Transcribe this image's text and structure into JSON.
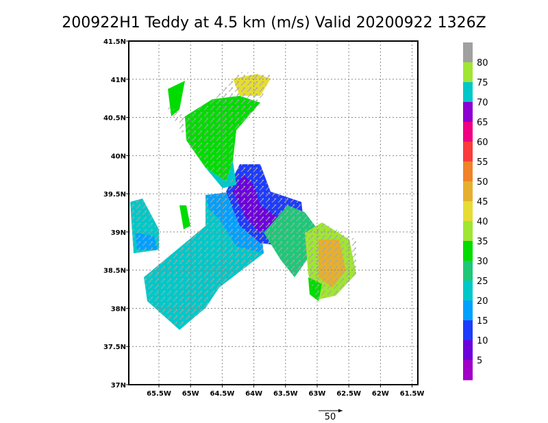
{
  "title": "200922H1 Teddy at 4.5 km (m/s) Valid 20200922 1326Z",
  "latitude_labels": [
    "41.5N",
    "41N",
    "40.5N",
    "40N",
    "39.5N",
    "39N",
    "38.5N",
    "38N",
    "37.5N",
    "37N"
  ],
  "longitude_labels": [
    "65.5W",
    "65W",
    "64.5W",
    "64W",
    "63.5W",
    "63W",
    "62.5W",
    "62W",
    "61.5W"
  ],
  "colorbar": {
    "colors": [
      "#a0a0a0",
      "#a0e632",
      "#00c8c8",
      "#8c00d2",
      "#f00082",
      "#fa3c3c",
      "#f08228",
      "#e6af2d",
      "#e6dc32",
      "#a0e632",
      "#00dc00",
      "#1ec878",
      "#00c8c8",
      "#00a0ff",
      "#1e3cff",
      "#6e00dc",
      "#a000c8"
    ],
    "labels": [
      "80",
      "75",
      "70",
      "65",
      "60",
      "55",
      "50",
      "45",
      "40",
      "35",
      "30",
      "25",
      "20",
      "15",
      "10",
      "5"
    ]
  },
  "reference_vector_label": "50"
}
